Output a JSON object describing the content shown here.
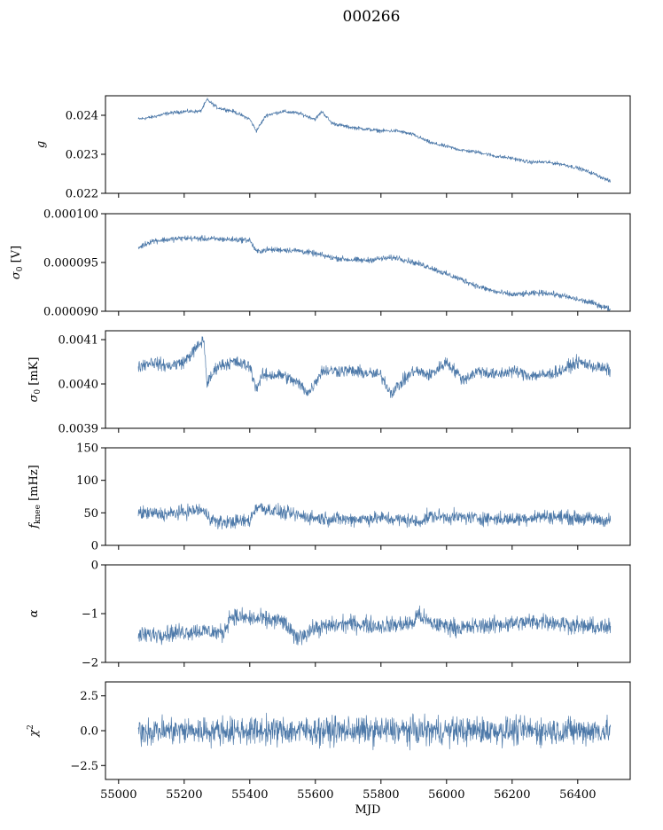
{
  "figure": {
    "title": "000266",
    "line_color": "#4c78a8"
  },
  "chart_data": [
    {
      "type": "line",
      "ylabel": "g",
      "ylabel_html": "g",
      "xlim": [
        54960,
        56560
      ],
      "ylim": [
        0.022,
        0.0245
      ],
      "yticks": [
        0.022,
        0.023,
        0.024
      ],
      "ytick_labels": [
        "0.022",
        "0.023",
        "0.024"
      ],
      "noise": 4e-05,
      "series": [
        {
          "x": [
            55060,
            55100,
            55150,
            55200,
            55250,
            55270,
            55300,
            55350,
            55400,
            55420,
            55450,
            55500,
            55550,
            55600,
            55620,
            55650,
            55700,
            55750,
            55800,
            55850,
            55900,
            55950,
            56000,
            56050,
            56100,
            56150,
            56200,
            56250,
            56300,
            56350,
            56400,
            56450,
            56500
          ],
          "y": [
            0.0239,
            0.02395,
            0.02405,
            0.0241,
            0.0241,
            0.0244,
            0.0242,
            0.0241,
            0.0239,
            0.0236,
            0.024,
            0.0241,
            0.02405,
            0.0239,
            0.0241,
            0.0238,
            0.0237,
            0.02365,
            0.0236,
            0.0236,
            0.0235,
            0.0233,
            0.0232,
            0.0231,
            0.02305,
            0.02295,
            0.0229,
            0.0228,
            0.0228,
            0.02275,
            0.02265,
            0.0225,
            0.0223
          ]
        }
      ]
    },
    {
      "type": "line",
      "ylabel": "σ0 [V]",
      "ylabel_html": "σ0 [V]",
      "xlim": [
        54960,
        56560
      ],
      "ylim": [
        9e-05,
        0.0001
      ],
      "yticks": [
        9e-05,
        9.5e-05,
        0.0001
      ],
      "ytick_labels": [
        "0.000090",
        "0.000095",
        "0.000100"
      ],
      "noise": 2.5e-07,
      "series": [
        {
          "x": [
            55060,
            55100,
            55200,
            55300,
            55400,
            55420,
            55450,
            55500,
            55550,
            55600,
            55650,
            55700,
            55750,
            55800,
            55850,
            55900,
            55950,
            56000,
            56050,
            56100,
            56150,
            56200,
            56250,
            56300,
            56350,
            56400,
            56450,
            56500
          ],
          "y": [
            9.65e-05,
            9.72e-05,
            9.75e-05,
            9.74e-05,
            9.73e-05,
            9.61e-05,
            9.63e-05,
            9.63e-05,
            9.62e-05,
            9.59e-05,
            9.55e-05,
            9.53e-05,
            9.52e-05,
            9.54e-05,
            9.55e-05,
            9.5e-05,
            9.45e-05,
            9.38e-05,
            9.32e-05,
            9.25e-05,
            9.2e-05,
            9.17e-05,
            9.18e-05,
            9.19e-05,
            9.16e-05,
            9.12e-05,
            9.08e-05,
            9.02e-05
          ]
        }
      ]
    },
    {
      "type": "line",
      "ylabel": "σ0 [mK]",
      "ylabel_html": "σ0 [mK]",
      "xlim": [
        54960,
        56560
      ],
      "ylim": [
        0.0039,
        0.00412
      ],
      "yticks": [
        0.0039,
        0.004,
        0.0041
      ],
      "ytick_labels": [
        "0.0039",
        "0.0040",
        "0.0041"
      ],
      "noise": 1.2e-05,
      "series": [
        {
          "x": [
            55060,
            55100,
            55150,
            55200,
            55260,
            55270,
            55300,
            55350,
            55400,
            55420,
            55440,
            55500,
            55550,
            55580,
            55620,
            55700,
            55800,
            55830,
            55900,
            55950,
            56000,
            56050,
            56100,
            56150,
            56200,
            56250,
            56300,
            56350,
            56400,
            56450,
            56500
          ],
          "y": [
            0.00404,
            0.00405,
            0.00404,
            0.00405,
            0.0041,
            0.004,
            0.00404,
            0.00405,
            0.00404,
            0.00399,
            0.00402,
            0.00402,
            0.004,
            0.00398,
            0.00403,
            0.00403,
            0.00402,
            0.00398,
            0.00403,
            0.00402,
            0.00405,
            0.00401,
            0.00403,
            0.00402,
            0.00403,
            0.00402,
            0.00402,
            0.00403,
            0.00405,
            0.00404,
            0.00403
          ]
        }
      ]
    },
    {
      "type": "line",
      "ylabel": "fknee [mHz]",
      "ylabel_html": "fknee [mHz]",
      "xlim": [
        54960,
        56560
      ],
      "ylim": [
        0,
        150
      ],
      "yticks": [
        0,
        50,
        100,
        150
      ],
      "ytick_labels": [
        "0",
        "50",
        "100",
        "150"
      ],
      "noise": 9,
      "series": [
        {
          "x": [
            55060,
            55150,
            55250,
            55300,
            55400,
            55420,
            55500,
            55600,
            55700,
            55800,
            55900,
            55910,
            55950,
            56100,
            56200,
            56300,
            56400,
            56500
          ],
          "y": [
            50,
            48,
            55,
            35,
            38,
            60,
            50,
            42,
            40,
            42,
            38,
            35,
            45,
            42,
            40,
            45,
            42,
            38
          ]
        }
      ]
    },
    {
      "type": "line",
      "ylabel": "α",
      "ylabel_html": "α",
      "xlim": [
        54960,
        56560
      ],
      "ylim": [
        -2,
        0
      ],
      "yticks": [
        -2,
        -1,
        0
      ],
      "ytick_labels": [
        "−2",
        "−1",
        "0"
      ],
      "noise": 0.15,
      "series": [
        {
          "x": [
            55060,
            55150,
            55250,
            55320,
            55340,
            55400,
            55500,
            55540,
            55600,
            55700,
            55800,
            55900,
            55910,
            55950,
            56050,
            56100,
            56200,
            56300,
            56400,
            56500
          ],
          "y": [
            -1.45,
            -1.4,
            -1.35,
            -1.4,
            -1.05,
            -1.1,
            -1.15,
            -1.5,
            -1.3,
            -1.2,
            -1.25,
            -1.2,
            -1.0,
            -1.2,
            -1.3,
            -1.25,
            -1.2,
            -1.15,
            -1.25,
            -1.3
          ]
        }
      ]
    },
    {
      "type": "line",
      "ylabel": "χ2",
      "ylabel_html": "χ2",
      "xlim": [
        54960,
        56560
      ],
      "ylim": [
        -3.5,
        3.5
      ],
      "yticks": [
        -2.5,
        0,
        2.5
      ],
      "ytick_labels": [
        "−2.5",
        "0.0",
        "2.5"
      ],
      "xticks": [
        55000,
        55200,
        55400,
        55600,
        55800,
        56000,
        56200,
        56400
      ],
      "xtick_labels": [
        "55000",
        "55200",
        "55400",
        "55600",
        "55800",
        "56000",
        "56200",
        "56400"
      ],
      "xlabel": "MJD",
      "noise": 0.85,
      "series": [
        {
          "x": [
            55060,
            56500
          ],
          "y": [
            0,
            0
          ]
        }
      ]
    }
  ]
}
